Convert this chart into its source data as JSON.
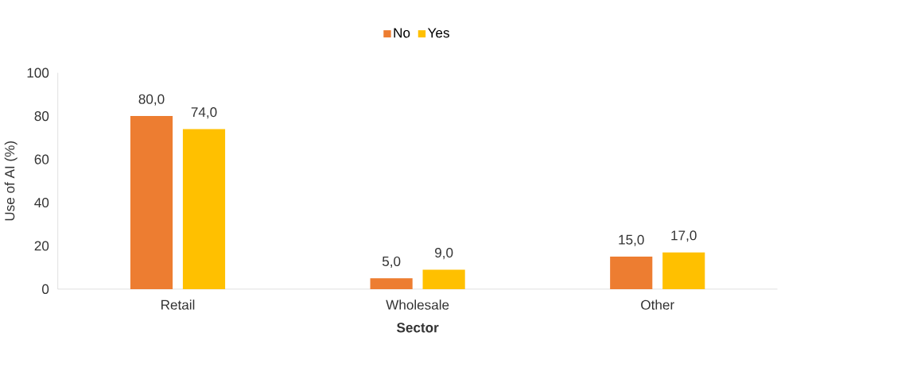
{
  "chart_data": {
    "type": "bar",
    "categories": [
      "Retail",
      "Wholesale",
      "Other"
    ],
    "series": [
      {
        "name": "No",
        "color": "#ed7d31",
        "values": [
          80,
          5,
          15
        ],
        "value_labels": [
          "80,0",
          "5,0",
          "15,0"
        ]
      },
      {
        "name": "Yes",
        "color": "#ffc000",
        "values": [
          74,
          9,
          17
        ],
        "value_labels": [
          "74,0",
          "9,0",
          "17,0"
        ]
      }
    ],
    "xlabel": "Sector",
    "ylabel": "Use of AI (%)",
    "ylim": [
      0,
      100
    ],
    "yticks": [
      0,
      20,
      40,
      60,
      80,
      100
    ],
    "grid": false,
    "legend": "top"
  }
}
